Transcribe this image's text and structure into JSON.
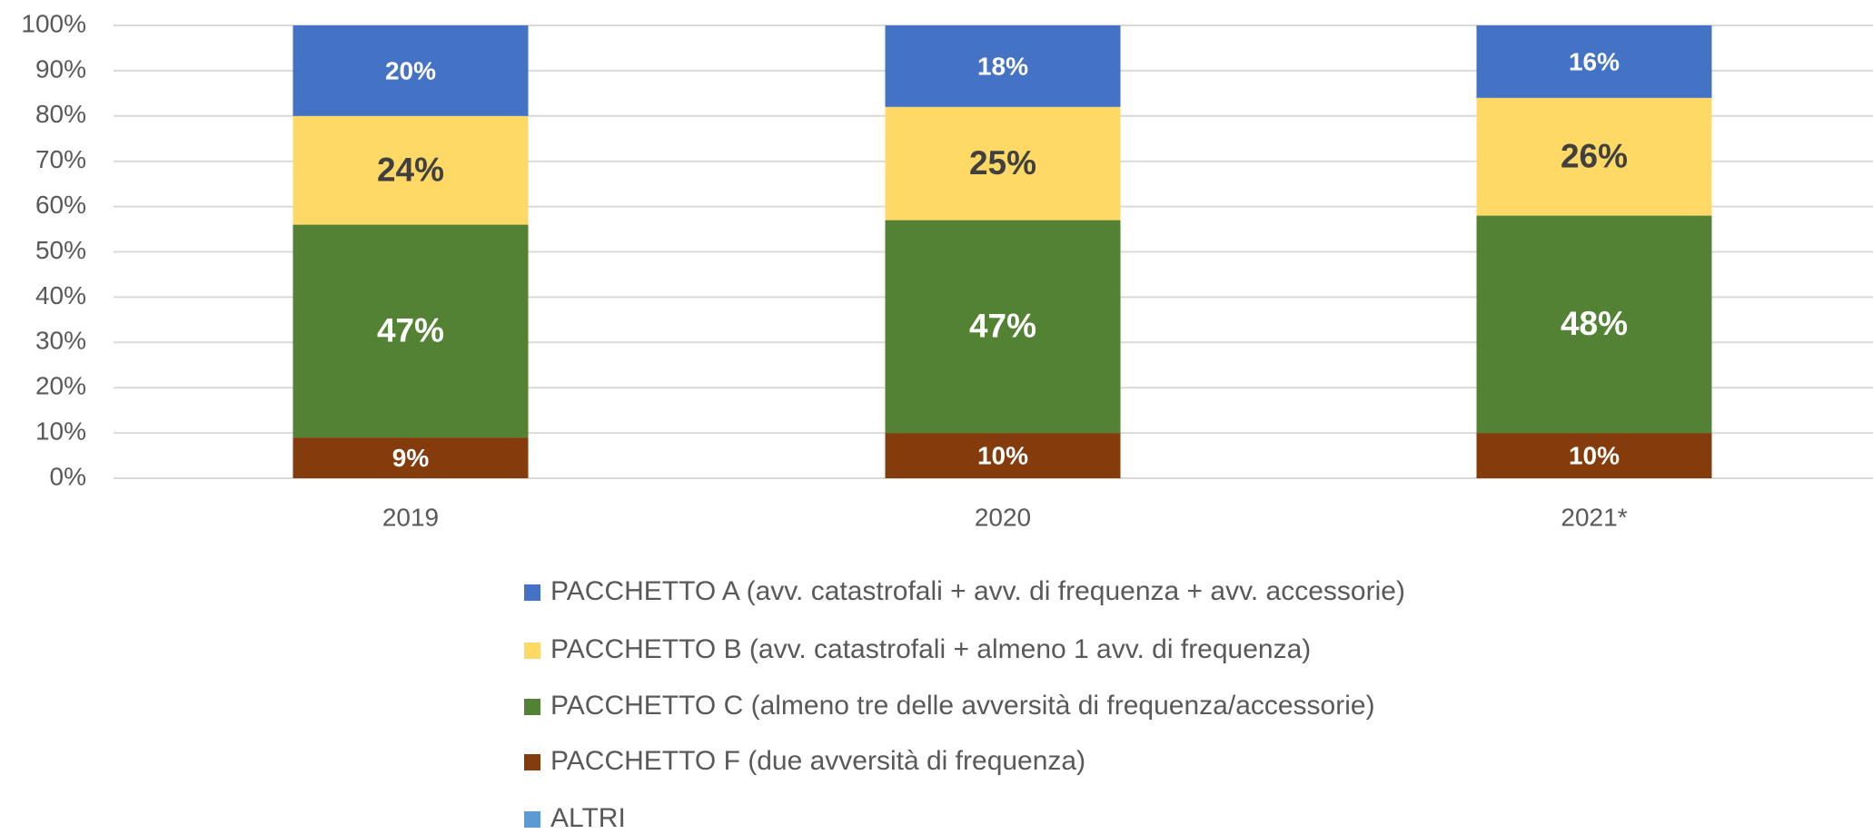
{
  "chart_data": {
    "type": "stacked_bar",
    "categories": [
      "2019",
      "2020",
      "2021*"
    ],
    "series": [
      {
        "name": "PACCHETTO A (avv. catastrofali + avv. di frequenza + avv. accessorie)",
        "color": "#4472c4",
        "values": [
          20,
          18,
          16
        ],
        "value_labels": [
          "20%",
          "18%",
          "16%"
        ]
      },
      {
        "name": "PACCHETTO B (avv. catastrofali + almeno 1 avv. di frequenza)",
        "color": "#ffd966",
        "values": [
          24,
          25,
          26
        ],
        "value_labels": [
          "24%",
          "25%",
          "26%"
        ]
      },
      {
        "name": "PACCHETTO C (almeno tre delle avversità di frequenza/accessorie)",
        "color": "#548235",
        "values": [
          47,
          47,
          48
        ],
        "value_labels": [
          "47%",
          "47%",
          "48%"
        ]
      },
      {
        "name": "PACCHETTO F (due avversità di frequenza)",
        "color": "#843c0c",
        "values": [
          9,
          10,
          10
        ],
        "value_labels": [
          "9%",
          "10%",
          "10%"
        ]
      },
      {
        "name": "ALTRI",
        "color": "#5b9bd5",
        "values": [
          0,
          0,
          0
        ]
      }
    ],
    "ylim": [
      0,
      100
    ],
    "yticks": [
      {
        "value": 0,
        "label": "0%"
      },
      {
        "value": 10,
        "label": "10%"
      },
      {
        "value": 20,
        "label": "20%"
      },
      {
        "value": 30,
        "label": "30%"
      },
      {
        "value": 40,
        "label": "40%"
      },
      {
        "value": 50,
        "label": "50%"
      },
      {
        "value": 60,
        "label": "60%"
      },
      {
        "value": 70,
        "label": "70%"
      },
      {
        "value": 80,
        "label": "80%"
      },
      {
        "value": 90,
        "label": "90%"
      },
      {
        "value": 100,
        "label": "100%"
      }
    ],
    "grid": true,
    "legend": "bottom"
  }
}
